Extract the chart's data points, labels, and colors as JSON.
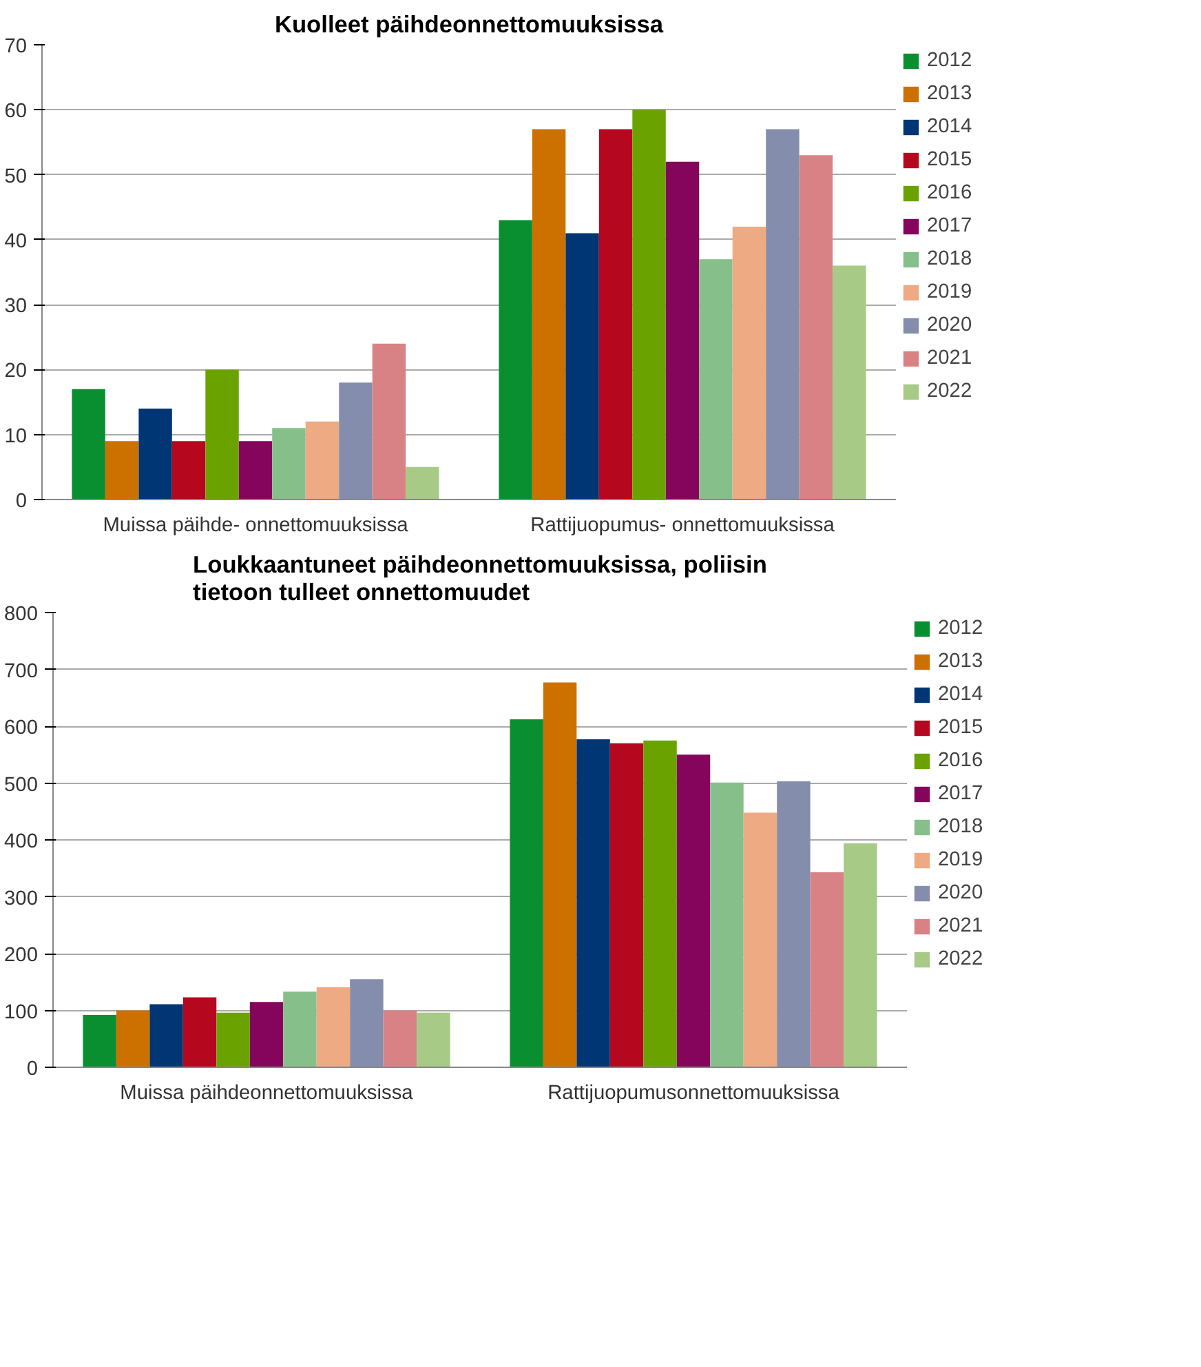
{
  "chart_data": [
    {
      "type": "bar",
      "title": "Kuolleet päihdeonnettomuuksissa",
      "categories": [
        "Muissa päihde- onnettomuuksissa",
        "Rattijuopumus- onnettomuuksissa"
      ],
      "ylim": [
        0,
        70
      ],
      "yticks": [
        0,
        10,
        20,
        30,
        40,
        50,
        60,
        70
      ],
      "grid": "y",
      "legend": "right",
      "series": [
        {
          "name": "2012",
          "color": "#0a8f30",
          "values": [
            17,
            43
          ]
        },
        {
          "name": "2013",
          "color": "#cc7000",
          "values": [
            9,
            57
          ]
        },
        {
          "name": "2014",
          "color": "#003673",
          "values": [
            14,
            41
          ]
        },
        {
          "name": "2015",
          "color": "#b5081e",
          "values": [
            9,
            57
          ]
        },
        {
          "name": "2016",
          "color": "#6aa300",
          "values": [
            20,
            60
          ]
        },
        {
          "name": "2017",
          "color": "#85055c",
          "values": [
            9,
            52
          ]
        },
        {
          "name": "2018",
          "color": "#86bf8a",
          "values": [
            11,
            37
          ]
        },
        {
          "name": "2019",
          "color": "#eeaa82",
          "values": [
            12,
            42
          ]
        },
        {
          "name": "2020",
          "color": "#858dad",
          "values": [
            18,
            57
          ]
        },
        {
          "name": "2021",
          "color": "#d98285",
          "values": [
            24,
            53
          ]
        },
        {
          "name": "2022",
          "color": "#a7cb86",
          "values": [
            5,
            36
          ]
        }
      ]
    },
    {
      "type": "bar",
      "title": "Loukkaantuneet päihdeonnettomuuksissa, poliisin tietoon tulleet onnettomuudet",
      "categories": [
        "Muissa päihdeonnettomuuksissa",
        "Rattijuopumusonnettomuuksissa"
      ],
      "ylim": [
        0,
        800
      ],
      "yticks": [
        0,
        100,
        200,
        300,
        400,
        500,
        600,
        700,
        800
      ],
      "grid": "y",
      "legend": "right",
      "series": [
        {
          "name": "2012",
          "color": "#0a8f30",
          "values": [
            92,
            612
          ]
        },
        {
          "name": "2013",
          "color": "#cc7000",
          "values": [
            100,
            677
          ]
        },
        {
          "name": "2014",
          "color": "#003673",
          "values": [
            111,
            577
          ]
        },
        {
          "name": "2015",
          "color": "#b5081e",
          "values": [
            123,
            570
          ]
        },
        {
          "name": "2016",
          "color": "#6aa300",
          "values": [
            96,
            575
          ]
        },
        {
          "name": "2017",
          "color": "#85055c",
          "values": [
            115,
            550
          ]
        },
        {
          "name": "2018",
          "color": "#86bf8a",
          "values": [
            133,
            501
          ]
        },
        {
          "name": "2019",
          "color": "#eeaa82",
          "values": [
            141,
            448
          ]
        },
        {
          "name": "2020",
          "color": "#858dad",
          "values": [
            155,
            503
          ]
        },
        {
          "name": "2021",
          "color": "#d98285",
          "values": [
            100,
            343
          ]
        },
        {
          "name": "2022",
          "color": "#a7cb86",
          "values": [
            96,
            394
          ]
        }
      ]
    }
  ]
}
